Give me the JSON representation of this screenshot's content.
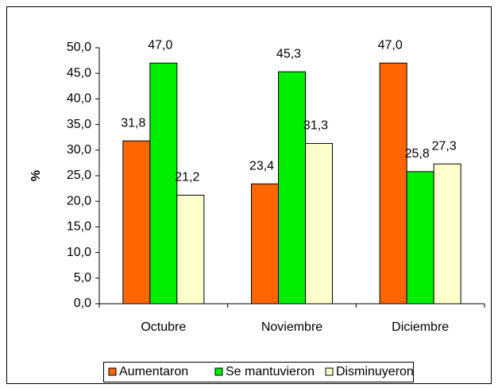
{
  "chart_data": {
    "type": "bar",
    "ylabel": "%",
    "categories": [
      "Octubre",
      "Noviembre",
      "Diciembre"
    ],
    "series": [
      {
        "name": "Aumentaron",
        "color": "#ff6600",
        "values": [
          31.8,
          23.4,
          47.0
        ],
        "value_labels": [
          "31,8",
          "23,4",
          "47,0"
        ]
      },
      {
        "name": "Se mantuvieron",
        "color": "#00ee00",
        "values": [
          47.0,
          45.3,
          25.8
        ],
        "value_labels": [
          "47,0",
          "45,3",
          "25,8"
        ]
      },
      {
        "name": "Disminuyeron",
        "color": "#ffffcc",
        "values": [
          21.2,
          31.3,
          27.3
        ],
        "value_labels": [
          "21,2",
          "31,3",
          "27,3"
        ]
      }
    ],
    "ylim": [
      0,
      50
    ],
    "yticks": [
      {
        "value": 0,
        "label": "0,0"
      },
      {
        "value": 5,
        "label": "5,0"
      },
      {
        "value": 10,
        "label": "10,0"
      },
      {
        "value": 15,
        "label": "15,0"
      },
      {
        "value": 20,
        "label": "20,0"
      },
      {
        "value": 25,
        "label": "25,0"
      },
      {
        "value": 30,
        "label": "30,0"
      },
      {
        "value": 35,
        "label": "35,0"
      },
      {
        "value": 40,
        "label": "40,0"
      },
      {
        "value": 45,
        "label": "45,0"
      },
      {
        "value": 50,
        "label": "50,0"
      }
    ],
    "grid": false,
    "legend": "bottom"
  }
}
